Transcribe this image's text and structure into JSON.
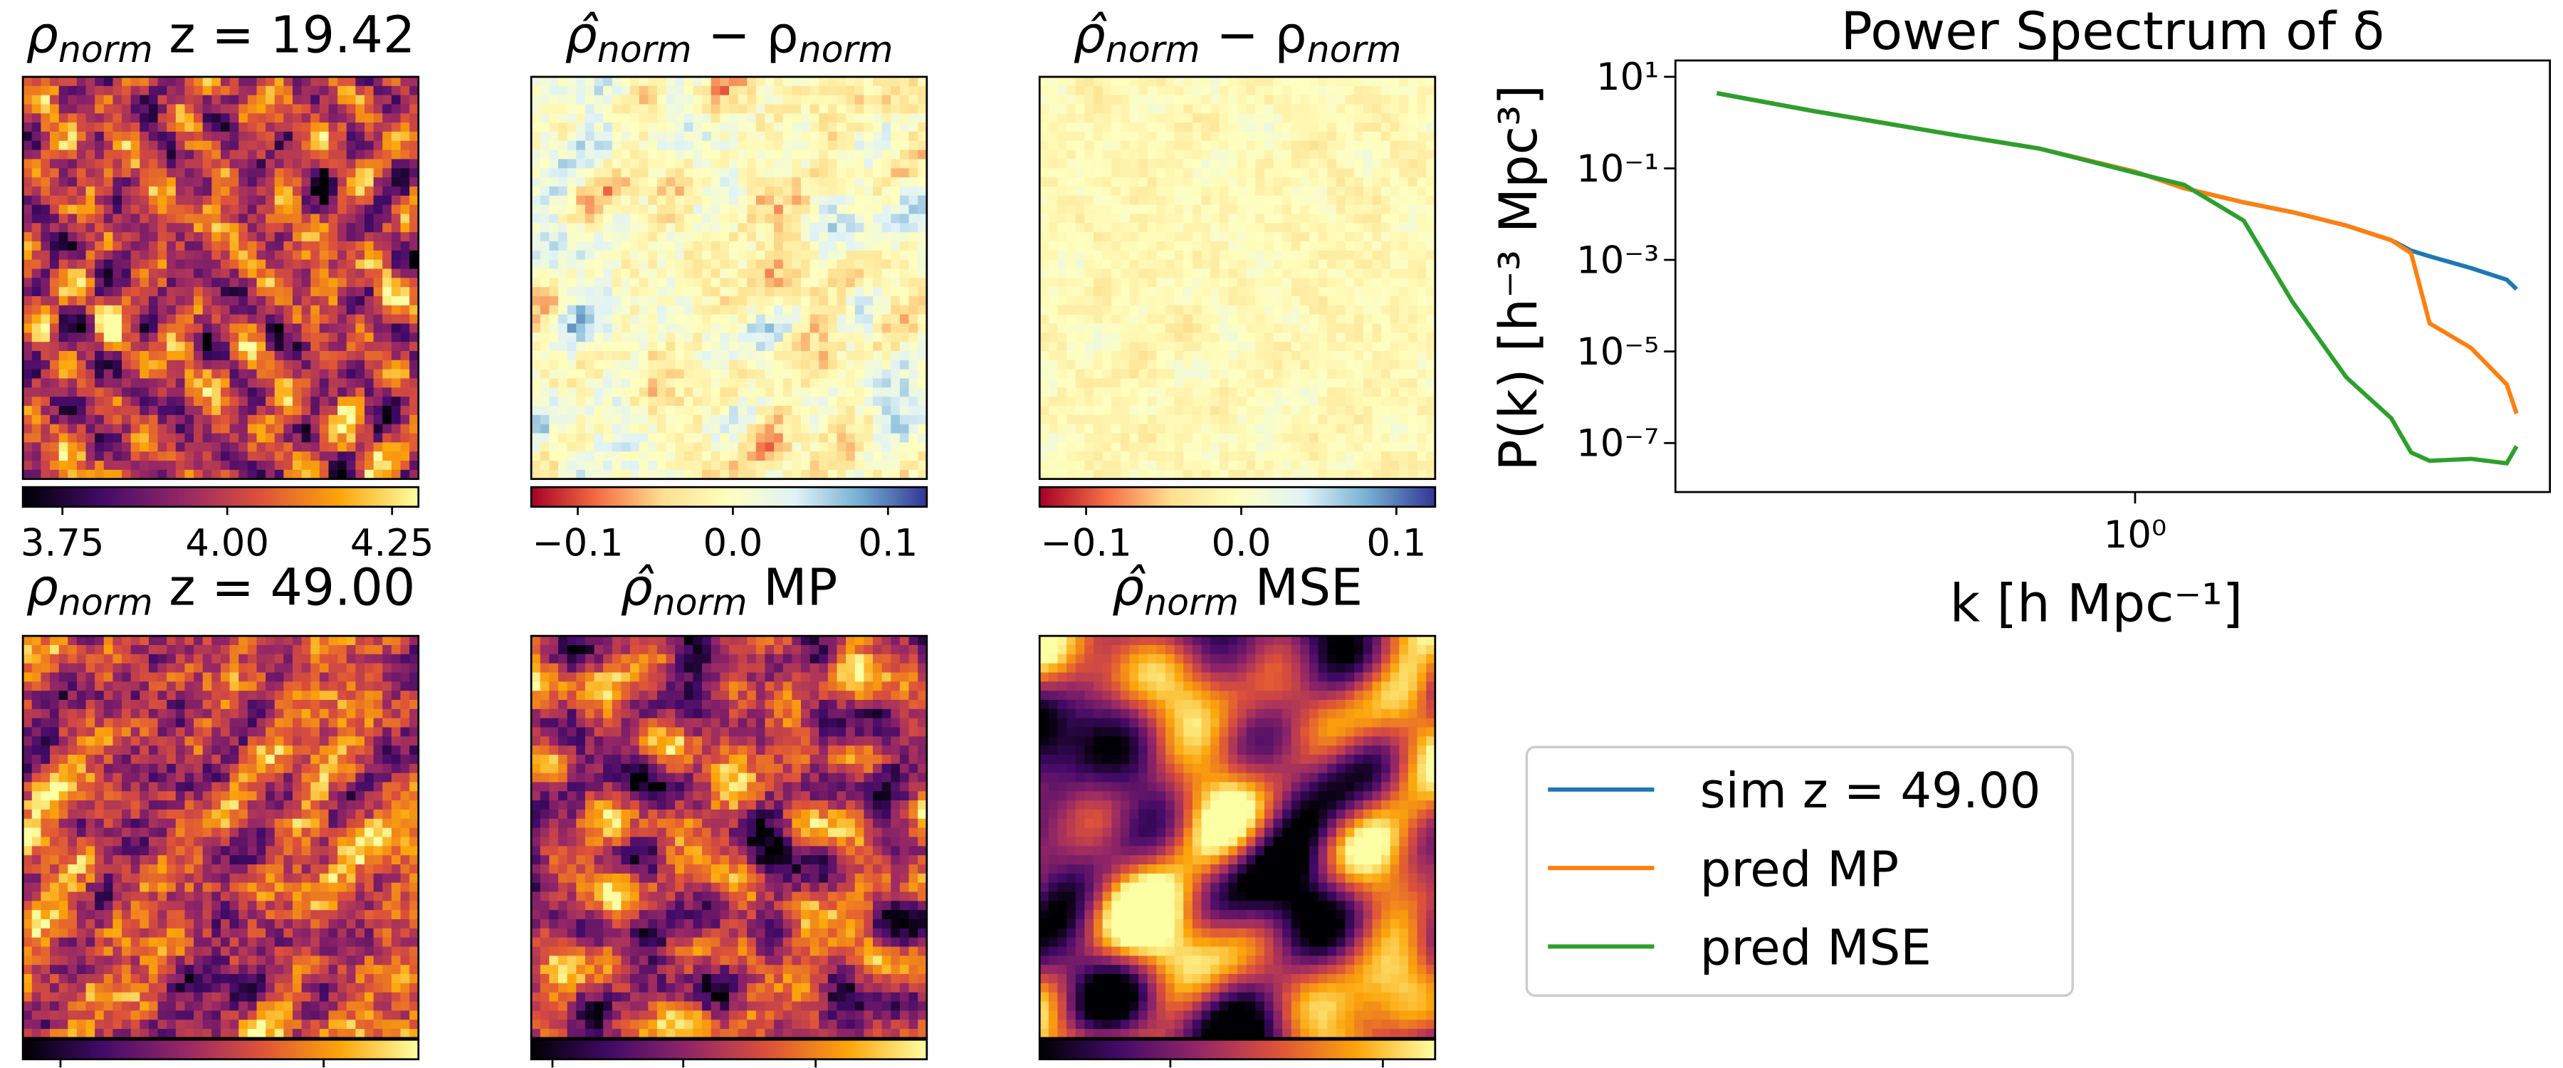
{
  "chart_data": [
    {
      "type": "heatmap",
      "title": {
        "symbol": "ρ",
        "subscript": "norm",
        "text": " z = 19.42"
      },
      "colormap": "inferno",
      "clim": [
        3.69,
        4.29
      ],
      "cticks": [
        3.75,
        {
          "value": 4,
          "label": "4.00"
        },
        4.25
      ]
    },
    {
      "type": "heatmap",
      "title": {
        "symbol": "ρ̂",
        "subscript": "norm",
        "text": " − ρ",
        "subscript2": "norm"
      },
      "colormap": "RdYlBu",
      "clim": [
        -0.13,
        0.125
      ],
      "cticks": [
        {
          "value": -0.1,
          "label": "−0.1"
        },
        {
          "value": 0,
          "label": "0.0"
        },
        0.1
      ]
    },
    {
      "type": "heatmap",
      "title": {
        "symbol": "ρ̂",
        "subscript": "norm",
        "text": " − ρ",
        "subscript2": "norm"
      },
      "colormap": "RdYlBu",
      "clim": [
        -0.13,
        0.125
      ],
      "cticks": [
        {
          "value": -0.1,
          "label": "−0.1"
        },
        {
          "value": 0,
          "label": "0.0"
        },
        0.1
      ]
    },
    {
      "type": "heatmap",
      "title": {
        "symbol": "ρ",
        "subscript": "norm",
        "text": " z = 49.00"
      },
      "colormap": "inferno"
    },
    {
      "type": "heatmap",
      "title": {
        "symbol": "ρ̂",
        "subscript": "norm",
        "text": " MP"
      },
      "colormap": "inferno"
    },
    {
      "type": "heatmap",
      "title": {
        "symbol": "ρ̂",
        "subscript": "norm",
        "text": " MSE"
      },
      "colormap": "inferno"
    },
    {
      "type": "line",
      "title": "Power Spectrum of δ",
      "x_label": "k [h Mpc⁻¹]",
      "y_label": "P(k) [h⁻³ Mpc³]",
      "xscale": "log",
      "yscale": "log",
      "xlim": [
        0.18,
        4.7
      ],
      "ylim": [
        8.5e-09,
        22.7
      ],
      "xticks": [
        {
          "value": 1,
          "label": "10⁰"
        }
      ],
      "yticks": [
        {
          "value": 10,
          "label": "10¹"
        },
        {
          "value": 0.1,
          "label": "10⁻¹"
        },
        {
          "value": 0.001,
          "label": "10⁻³"
        },
        {
          "value": 1e-05,
          "label": "10⁻⁵"
        },
        {
          "value": 1e-07,
          "label": "10⁻⁷"
        }
      ],
      "legend": "lower-right-outside",
      "x": [
        0.21,
        0.3,
        0.5,
        0.7,
        1.0,
        1.2,
        1.5,
        1.8,
        2.2,
        2.6,
        2.8,
        3.0,
        3.5,
        4.0,
        4.15
      ],
      "series": [
        {
          "name": "sim z = 49.00",
          "color": "#1f77b4",
          "values": [
            4.4,
            1.8,
            0.56,
            0.27,
            0.085,
            0.037,
            0.018,
            0.011,
            0.0056,
            0.0027,
            0.0016,
            0.0012,
            0.00066,
            0.00037,
            0.00023
          ]
        },
        {
          "name": "pred MP",
          "color": "#ff7f0e",
          "values": [
            4.4,
            1.8,
            0.56,
            0.27,
            0.085,
            0.037,
            0.018,
            0.011,
            0.0056,
            0.0027,
            0.0014,
            4.1e-05,
            1.2e-05,
            1.9e-06,
            4.4e-07
          ]
        },
        {
          "name": "pred MSE",
          "color": "#2ca02c",
          "values": [
            4.4,
            1.8,
            0.56,
            0.27,
            0.08,
            0.044,
            0.0072,
            0.00012,
            2.7e-06,
            3.5e-07,
            6.2e-08,
            4.1e-08,
            4.5e-08,
            3.6e-08,
            8.5e-08
          ]
        }
      ]
    }
  ]
}
